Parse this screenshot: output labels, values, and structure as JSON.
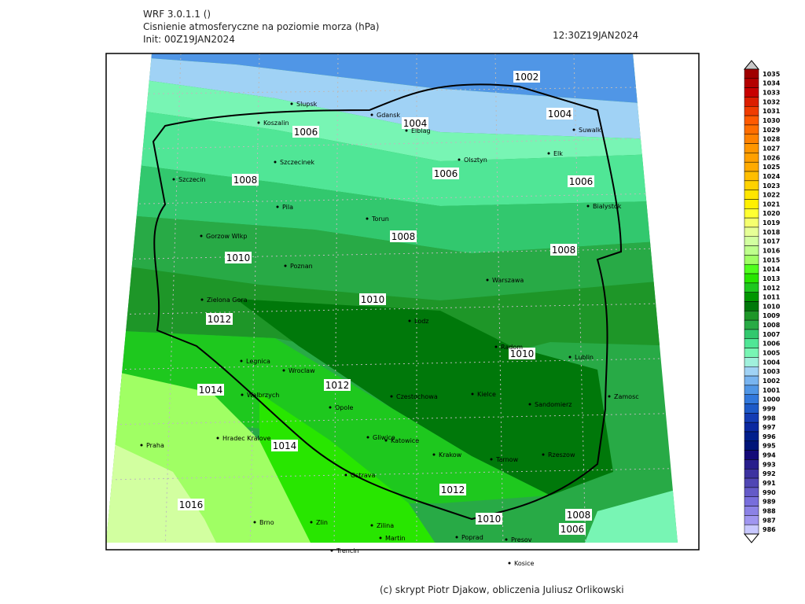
{
  "header": {
    "model": "WRF 3.0.1.1 ()",
    "title": "Cisnienie atmosferyczne na poziomie morza (hPa)",
    "init": "Init: 00Z19JAN2024",
    "valid": "12:30Z19JAN2024"
  },
  "isobar_labels": [
    1002,
    1004,
    1004,
    1006,
    1006,
    1006,
    1008,
    1008,
    1008,
    1010,
    1010,
    1010,
    1012,
    1012,
    1012,
    1010,
    1008,
    1006,
    1014,
    1014,
    1016
  ],
  "cities": [
    "Slupsk",
    "Koszalin",
    "Gdansk",
    "Elblag",
    "Suwalki",
    "Elk",
    "Olsztyn",
    "Szczecinek",
    "Szczecin",
    "Bialystok",
    "Pila",
    "Torun",
    "Gorzow Wlkp",
    "Poznan",
    "Warszawa",
    "Zielona Gora",
    "Lodz",
    "Radom",
    "Lublin",
    "Legnica",
    "Wroclaw",
    "Kielce",
    "Czestochowa",
    "Walbrzych",
    "Zamosc",
    "Sandomierz",
    "Opole",
    "Praha",
    "Hradec Kralove",
    "Gliwice",
    "Katowice",
    "Krakow",
    "Tarnow",
    "Rzeszow",
    "Ostrava",
    "Brno",
    "Zlin",
    "Zilina",
    "Martin",
    "Poprad",
    "Presov",
    "Trencin",
    "Kosice"
  ],
  "colorbar": {
    "levels": [
      1035,
      1034,
      1033,
      1032,
      1031,
      1030,
      1029,
      1028,
      1027,
      1026,
      1025,
      1024,
      1023,
      1022,
      1021,
      1020,
      1019,
      1018,
      1017,
      1016,
      1015,
      1014,
      1013,
      1012,
      1011,
      1010,
      1009,
      1008,
      1007,
      1006,
      1005,
      1004,
      1003,
      1002,
      1001,
      1000,
      999,
      998,
      997,
      996,
      995,
      994,
      993,
      992,
      991,
      990,
      989,
      988,
      987,
      986
    ],
    "colors": [
      "#a00000",
      "#b40000",
      "#c80000",
      "#dc1e00",
      "#f03c00",
      "#ff5a00",
      "#ff6e00",
      "#ff8200",
      "#ff9600",
      "#ffa000",
      "#ffaa00",
      "#ffbe00",
      "#ffd200",
      "#ffe600",
      "#fff000",
      "#ffff32",
      "#f5ff6e",
      "#e6ff96",
      "#d2ffa0",
      "#beff8c",
      "#a0ff64",
      "#50ff1e",
      "#28e600",
      "#1ec81e",
      "#009600",
      "#00780a",
      "#1e9628",
      "#28aa46",
      "#32c86e",
      "#50e696",
      "#78f5b4",
      "#a0f0dc",
      "#a0d2f5",
      "#78b4f0",
      "#5096e6",
      "#3278dc",
      "#1e5ac8",
      "#143cb4",
      "#0a28a0",
      "#001e8c",
      "#001478",
      "#140a78",
      "#281e8c",
      "#3c32a0",
      "#5046b4",
      "#645ac8",
      "#786edc",
      "#8c82e6",
      "#a096f0",
      "#c8c8ff"
    ]
  },
  "footer": "(c) skrypt Piotr Djakow, obliczenia Juliusz Orlikowski"
}
